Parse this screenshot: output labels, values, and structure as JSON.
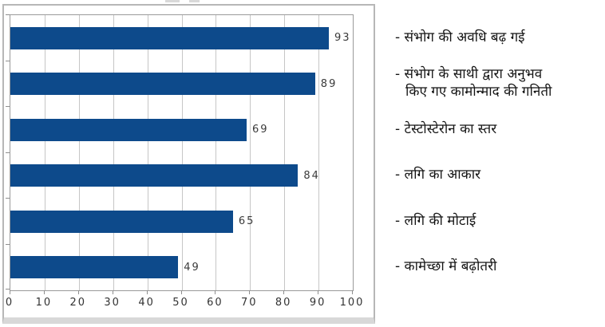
{
  "chart_data": {
    "type": "bar",
    "orientation": "horizontal",
    "title": "",
    "xlabel": "",
    "ylabel": "",
    "xlim": [
      0,
      100
    ],
    "x_ticks": [
      0,
      10,
      20,
      30,
      40,
      50,
      60,
      70,
      80,
      90,
      100
    ],
    "grid": true,
    "bar_color": "#0d4a8b",
    "values": [
      93,
      89,
      69,
      84,
      65,
      49
    ],
    "data_labels": [
      "93",
      "89",
      "69",
      "84",
      "65",
      "49"
    ],
    "categories": [
      "- संभोग की अवधि बढ़ गई",
      "- संभोग के साथी द्वारा अनुभव\nकिए गए कामोन्माद की गनिती",
      "- टेस्टोस्टेरोन का स्तर",
      "- लगि का आकार",
      "- लगि की मोटाई",
      "- कामेच्छा में बढ़ोतरी"
    ],
    "legend_position": "category labels listed right of plot, value labels at bar ends"
  }
}
